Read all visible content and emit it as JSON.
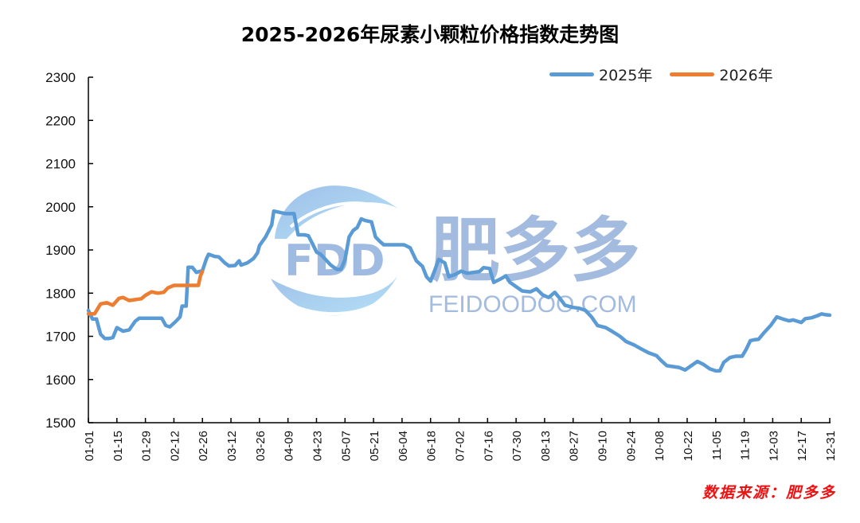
{
  "title": "2025-2026年尿素小颗粒价格指数走势图",
  "legend": [
    {
      "label": "2025年",
      "color": "#5B9BD5"
    },
    {
      "label": "2026年",
      "color": "#ED7D31"
    }
  ],
  "watermark": {
    "logo_text": "FDD",
    "brand_cn": "肥多多",
    "brand_url": "FEIDOODOO.COM"
  },
  "source": "数据来源：肥多多",
  "chart_data": {
    "type": "line",
    "title": "2025-2026年尿素小颗粒价格指数走势图",
    "xlabel": "",
    "ylabel": "",
    "ylim": [
      1500,
      2300
    ],
    "yticks": [
      1500,
      1600,
      1700,
      1800,
      1900,
      2000,
      2100,
      2200,
      2300
    ],
    "xticks": [
      "01-01",
      "01-15",
      "01-29",
      "02-12",
      "02-26",
      "03-12",
      "03-26",
      "04-09",
      "04-23",
      "05-07",
      "05-21",
      "06-04",
      "06-18",
      "07-02",
      "07-16",
      "07-30",
      "08-13",
      "08-27",
      "09-10",
      "09-24",
      "10-08",
      "10-22",
      "11-05",
      "11-19",
      "12-03",
      "12-17",
      "12-31"
    ],
    "grid": false,
    "legend_position": "top-right",
    "series": [
      {
        "name": "2025年",
        "color": "#5B9BD5",
        "points": [
          [
            "01-01",
            1760
          ],
          [
            "01-03",
            1740
          ],
          [
            "01-05",
            1740
          ],
          [
            "01-07",
            1705
          ],
          [
            "01-09",
            1695
          ],
          [
            "01-11",
            1695
          ],
          [
            "01-13",
            1697
          ],
          [
            "01-15",
            1720
          ],
          [
            "01-18",
            1712
          ],
          [
            "01-21",
            1715
          ],
          [
            "01-24",
            1735
          ],
          [
            "01-26",
            1742
          ],
          [
            "01-29",
            1742
          ],
          [
            "02-02",
            1742
          ],
          [
            "02-06",
            1742
          ],
          [
            "02-08",
            1725
          ],
          [
            "02-10",
            1722
          ],
          [
            "02-13",
            1735
          ],
          [
            "02-15",
            1745
          ],
          [
            "02-16",
            1770
          ],
          [
            "02-18",
            1770
          ],
          [
            "02-19",
            1860
          ],
          [
            "02-21",
            1860
          ],
          [
            "02-23",
            1848
          ],
          [
            "02-26",
            1852
          ],
          [
            "02-28",
            1880
          ],
          [
            "03-01",
            1890
          ],
          [
            "03-04",
            1885
          ],
          [
            "03-06",
            1884
          ],
          [
            "03-09",
            1870
          ],
          [
            "03-11",
            1863
          ],
          [
            "03-14",
            1864
          ],
          [
            "03-16",
            1875
          ],
          [
            "03-17",
            1865
          ],
          [
            "03-20",
            1870
          ],
          [
            "03-23",
            1880
          ],
          [
            "03-25",
            1893
          ],
          [
            "03-26",
            1910
          ],
          [
            "03-29",
            1930
          ],
          [
            "04-01",
            1958
          ],
          [
            "04-02",
            1990
          ],
          [
            "04-05",
            1987
          ],
          [
            "04-08",
            1984
          ],
          [
            "04-12",
            1984
          ],
          [
            "04-14",
            1935
          ],
          [
            "04-17",
            1935
          ],
          [
            "04-19",
            1933
          ],
          [
            "04-21",
            1915
          ],
          [
            "04-23",
            1895
          ],
          [
            "04-25",
            1890
          ],
          [
            "04-28",
            1875
          ],
          [
            "04-30",
            1865
          ],
          [
            "05-03",
            1855
          ],
          [
            "05-05",
            1855
          ],
          [
            "05-07",
            1878
          ],
          [
            "05-09",
            1930
          ],
          [
            "05-11",
            1945
          ],
          [
            "05-13",
            1952
          ],
          [
            "05-15",
            1972
          ],
          [
            "05-17",
            1968
          ],
          [
            "05-20",
            1965
          ],
          [
            "05-22",
            1930
          ],
          [
            "05-24",
            1920
          ],
          [
            "05-26",
            1912
          ],
          [
            "06-01",
            1912
          ],
          [
            "06-05",
            1912
          ],
          [
            "06-08",
            1905
          ],
          [
            "06-11",
            1875
          ],
          [
            "06-14",
            1862
          ],
          [
            "06-16",
            1838
          ],
          [
            "06-18",
            1828
          ],
          [
            "06-20",
            1852
          ],
          [
            "06-22",
            1878
          ],
          [
            "06-25",
            1870
          ],
          [
            "06-27",
            1838
          ],
          [
            "06-30",
            1843
          ],
          [
            "07-03",
            1851
          ],
          [
            "07-06",
            1846
          ],
          [
            "07-09",
            1848
          ],
          [
            "07-12",
            1850
          ],
          [
            "07-14",
            1859
          ],
          [
            "07-17",
            1857
          ],
          [
            "07-19",
            1825
          ],
          [
            "07-22",
            1832
          ],
          [
            "07-25",
            1840
          ],
          [
            "07-27",
            1825
          ],
          [
            "07-30",
            1815
          ],
          [
            "08-02",
            1805
          ],
          [
            "08-06",
            1803
          ],
          [
            "08-09",
            1810
          ],
          [
            "08-12",
            1796
          ],
          [
            "08-15",
            1790
          ],
          [
            "08-18",
            1802
          ],
          [
            "08-21",
            1785
          ],
          [
            "08-23",
            1772
          ],
          [
            "08-27",
            1767
          ],
          [
            "08-30",
            1765
          ],
          [
            "09-02",
            1760
          ],
          [
            "09-05",
            1745
          ],
          [
            "09-08",
            1725
          ],
          [
            "09-12",
            1720
          ],
          [
            "09-15",
            1712
          ],
          [
            "09-19",
            1700
          ],
          [
            "09-22",
            1688
          ],
          [
            "09-26",
            1680
          ],
          [
            "09-29",
            1672
          ],
          [
            "10-03",
            1662
          ],
          [
            "10-07",
            1655
          ],
          [
            "10-09",
            1645
          ],
          [
            "10-12",
            1632
          ],
          [
            "10-15",
            1630
          ],
          [
            "10-18",
            1628
          ],
          [
            "10-21",
            1622
          ],
          [
            "10-24",
            1632
          ],
          [
            "10-27",
            1642
          ],
          [
            "10-30",
            1635
          ],
          [
            "11-02",
            1625
          ],
          [
            "11-05",
            1620
          ],
          [
            "11-07",
            1620
          ],
          [
            "11-09",
            1640
          ],
          [
            "11-12",
            1651
          ],
          [
            "11-15",
            1654
          ],
          [
            "11-18",
            1654
          ],
          [
            "11-20",
            1670
          ],
          [
            "11-22",
            1690
          ],
          [
            "11-24",
            1692
          ],
          [
            "11-26",
            1693
          ],
          [
            "11-29",
            1710
          ],
          [
            "12-02",
            1725
          ],
          [
            "12-05",
            1745
          ],
          [
            "12-08",
            1740
          ],
          [
            "12-11",
            1736
          ],
          [
            "12-13",
            1738
          ],
          [
            "12-17",
            1732
          ],
          [
            "12-19",
            1741
          ],
          [
            "12-22",
            1743
          ],
          [
            "12-25",
            1748
          ],
          [
            "12-27",
            1752
          ],
          [
            "12-29",
            1750
          ],
          [
            "12-31",
            1749
          ]
        ]
      },
      {
        "name": "2026年",
        "color": "#ED7D31",
        "points": [
          [
            "01-01",
            1752
          ],
          [
            "01-04",
            1752
          ],
          [
            "01-07",
            1775
          ],
          [
            "01-10",
            1778
          ],
          [
            "01-13",
            1772
          ],
          [
            "01-16",
            1788
          ],
          [
            "01-18",
            1790
          ],
          [
            "01-21",
            1783
          ],
          [
            "01-24",
            1785
          ],
          [
            "01-27",
            1787
          ],
          [
            "01-29",
            1795
          ],
          [
            "02-01",
            1803
          ],
          [
            "02-04",
            1800
          ],
          [
            "02-07",
            1802
          ],
          [
            "02-09",
            1812
          ],
          [
            "02-12",
            1818
          ],
          [
            "02-15",
            1818
          ],
          [
            "02-19",
            1818
          ],
          [
            "02-22",
            1818
          ],
          [
            "02-24",
            1818
          ],
          [
            "02-25",
            1840
          ],
          [
            "02-26",
            1850
          ]
        ]
      }
    ]
  }
}
